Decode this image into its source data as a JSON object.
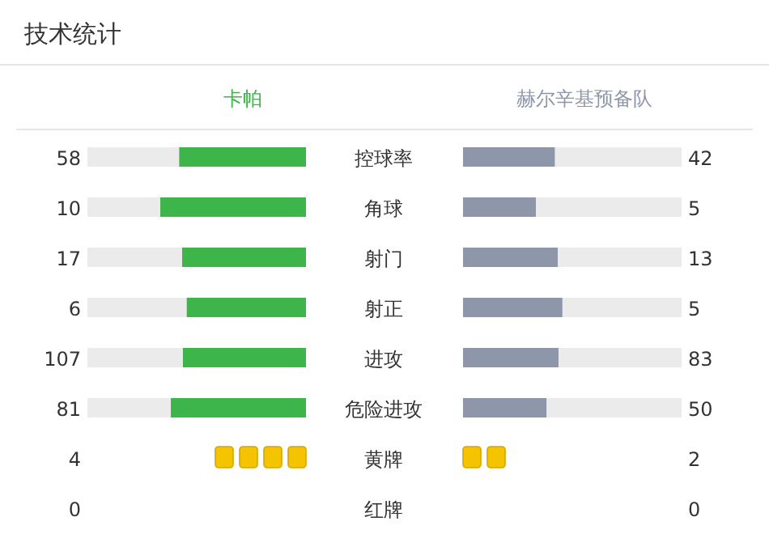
{
  "chart_data": [
    {
      "type": "other",
      "title": "技术统计",
      "categories": [
        "控球率",
        "角球",
        "射门",
        "射正",
        "进攻",
        "危险进攻"
      ],
      "series": [
        {
          "name": "卡帕",
          "color": "#3db54a",
          "values": [
            58,
            10,
            17,
            6,
            107,
            81
          ]
        },
        {
          "name": "赫尔辛基预备队",
          "color": "#8e97a9",
          "values": [
            42,
            5,
            13,
            5,
            83,
            50
          ]
        }
      ],
      "data_labels": true
    },
    {
      "type": "other",
      "categories": [
        "黄牌",
        "红牌"
      ],
      "series": [
        {
          "color": "#f5c400",
          "values": [
            4,
            0
          ]
        },
        {
          "color": "#f5c400",
          "values": [
            2,
            0
          ]
        }
      ],
      "data_labels": true
    }
  ]
}
